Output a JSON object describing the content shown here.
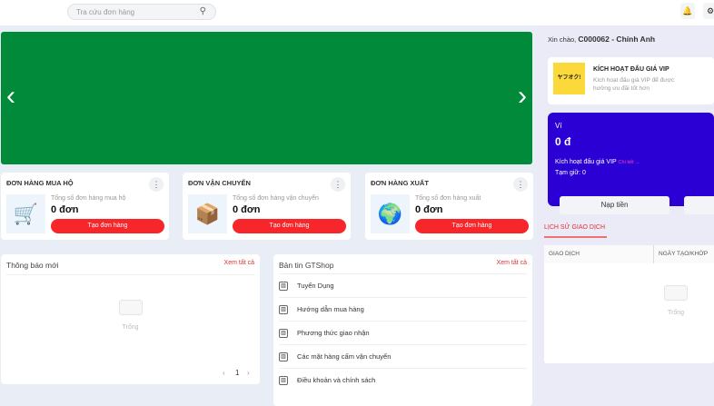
{
  "header": {
    "search_placeholder": "Tra cứu đơn hàng",
    "icons": [
      "search-icon",
      "bell-icon",
      "gear-icon"
    ]
  },
  "banner": {
    "color": "#008a3a"
  },
  "cards": [
    {
      "title": "ĐƠN HÀNG MUA HỘ",
      "subtitle": "Tổng số đơn hàng mua hộ",
      "count": "0 đơn",
      "button": "Tạo đơn hàng",
      "icon": "🛒"
    },
    {
      "title": "ĐƠN VẬN CHUYỂN",
      "subtitle": "Tổng số đơn hàng vận chuyển",
      "count": "0 đơn",
      "button": "Tạo đơn hàng",
      "icon": "📦"
    },
    {
      "title": "ĐƠN HÀNG XUẤT",
      "subtitle": "Tổng số đơn hàng xuất",
      "count": "0 đơn",
      "button": "Tạo đơn hàng",
      "icon": "🌍"
    }
  ],
  "notifications": {
    "title": "Thông báo mới",
    "see_all": "Xem tất cả",
    "empty": "Trống",
    "page": "1"
  },
  "news": {
    "title": "Bản tin GTShop",
    "see_all": "Xem tất cả",
    "items": [
      "Tuyển Dụng",
      "Hướng dẫn mua hàng",
      "Phương thức giao nhận",
      "Các mặt hàng cấm vận chuyển",
      "Điều khoản và chính sách"
    ]
  },
  "sidebar": {
    "greeting": "Xin chào,",
    "user": "C000062 - Chính Anh",
    "vip": {
      "logo": "ヤフオク!",
      "title": "KÍCH HOẠT ĐẤU GIÁ VIP",
      "desc": "Kích hoạt đấu giá VIP để được hưởng ưu đãi tốt hơn"
    },
    "wallet": {
      "label": "Ví",
      "balance": "0 đ",
      "vip_label": "Kích hoạt đấu giá VIP",
      "detail": "Chi tiết →",
      "hold": "Tạm giữ: 0",
      "topup": "Nạp tiền",
      "color": "#2a00d4"
    },
    "history": {
      "title": "LỊCH SỬ GIAO DỊCH",
      "columns": [
        "GIAO DỊCH",
        "NGÀY TẠO/KHỚP"
      ],
      "empty": "Trống"
    }
  }
}
